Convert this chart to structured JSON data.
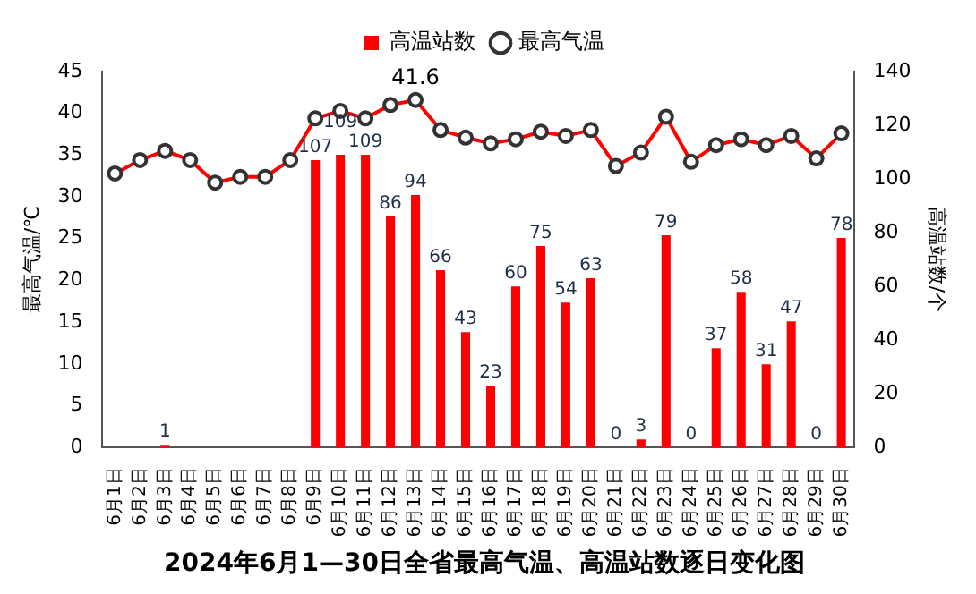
{
  "chart_data": {
    "type": "bar",
    "title": "2024年6月1—30日全省最高气温、高温站数逐日变化图",
    "ylabel": "最高气温/℃",
    "y2label": "高温站数/个",
    "categories": [
      "6月1日",
      "6月2日",
      "6月3日",
      "6月4日",
      "6月5日",
      "6月6日",
      "6月7日",
      "6月8日",
      "6月9日",
      "6月10日",
      "6月11日",
      "6月12日",
      "6月13日",
      "6月14日",
      "6月15日",
      "6月16日",
      "6月17日",
      "6月18日",
      "6月19日",
      "6月20日",
      "6月21日",
      "6月22日",
      "6月23日",
      "6月24日",
      "6月25日",
      "6月26日",
      "6月27日",
      "6月28日",
      "6月29日",
      "6月30日"
    ],
    "series": [
      {
        "name": "高温站数",
        "axis": "y2",
        "color": "#ff0000",
        "values": [
          null,
          null,
          1,
          null,
          null,
          null,
          null,
          null,
          107,
          109,
          109,
          86,
          94,
          66,
          43,
          23,
          60,
          75,
          54,
          63,
          0,
          3,
          79,
          0,
          37,
          58,
          31,
          47,
          0,
          78
        ],
        "value_labels": [
          null,
          null,
          "1",
          null,
          null,
          null,
          null,
          null,
          "107",
          "109",
          "109",
          "86",
          "94",
          "66",
          "43",
          "23",
          "60",
          "75",
          "54",
          "63",
          "0",
          "3",
          "79",
          "0",
          "37",
          "58",
          "31",
          "47",
          "0",
          "78"
        ]
      },
      {
        "name": "最高气温",
        "type": "line",
        "axis": "y",
        "color": "#ff0000",
        "marker": "circle",
        "values": [
          32.8,
          34.4,
          35.5,
          34.4,
          31.7,
          32.4,
          32.4,
          34.4,
          39.4,
          40.3,
          39.4,
          41.0,
          41.6,
          38.0,
          37.1,
          36.4,
          36.9,
          37.8,
          37.3,
          38.0,
          33.7,
          35.3,
          39.6,
          34.2,
          36.2,
          36.9,
          36.2,
          37.3,
          34.6,
          37.6
        ],
        "value_labels": [
          null,
          null,
          null,
          null,
          null,
          null,
          null,
          null,
          null,
          null,
          null,
          null,
          "41.6",
          null,
          null,
          null,
          null,
          null,
          null,
          null,
          null,
          null,
          null,
          null,
          null,
          null,
          null,
          null,
          null,
          null
        ]
      }
    ],
    "ylim": [
      0,
      45
    ],
    "yticks": [
      0,
      5,
      10,
      15,
      20,
      25,
      30,
      35,
      40,
      45
    ],
    "y2lim": [
      0,
      140
    ],
    "y2ticks": [
      0,
      20,
      40,
      60,
      80,
      100,
      120,
      140
    ],
    "grid": false,
    "legend": "top"
  }
}
